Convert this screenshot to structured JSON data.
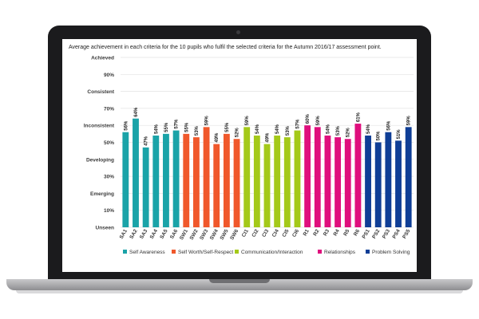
{
  "chart_data": {
    "type": "bar",
    "title": "Average achievement in each criteria for the 10 pupils who fulfil the selected criteria for the Autumn 2016/17 assessment point.",
    "ylim": [
      0,
      100
    ],
    "yticks": [
      {
        "value": 100,
        "label": "Achieved"
      },
      {
        "value": 90,
        "label": "90%"
      },
      {
        "value": 80,
        "label": "Consistent"
      },
      {
        "value": 70,
        "label": "70%"
      },
      {
        "value": 60,
        "label": "Inconsistent"
      },
      {
        "value": 50,
        "label": "50%"
      },
      {
        "value": 40,
        "label": "Developing"
      },
      {
        "value": 30,
        "label": "30%"
      },
      {
        "value": 20,
        "label": "Emerging"
      },
      {
        "value": 10,
        "label": "10%"
      },
      {
        "value": 0,
        "label": "Unseen"
      }
    ],
    "grid": true,
    "legend_position": "bottom",
    "series": [
      {
        "name": "Self Awareness",
        "color": "#1aa3a8",
        "categories": [
          "SA1",
          "SA2",
          "SA3",
          "SA4",
          "SA5",
          "SA6"
        ],
        "values": [
          56,
          64,
          47,
          54,
          55,
          57
        ]
      },
      {
        "name": "Self Worth/Self-Respect",
        "color": "#f0582b",
        "categories": [
          "SW1",
          "SW2",
          "SW3",
          "SW4",
          "SW5",
          "SW6"
        ],
        "values": [
          55,
          53,
          59,
          49,
          55,
          52
        ]
      },
      {
        "name": "Communication/Interaction",
        "color": "#a4c919",
        "categories": [
          "CI1",
          "CI2",
          "CI3",
          "CI4",
          "CI5",
          "CI6"
        ],
        "values": [
          59,
          54,
          49,
          54,
          53,
          57
        ]
      },
      {
        "name": "Relationships",
        "color": "#df0f7d",
        "categories": [
          "R1",
          "R2",
          "R3",
          "R4",
          "R5",
          "R6"
        ],
        "values": [
          60,
          59,
          54,
          53,
          52,
          61
        ]
      },
      {
        "name": "Problem Solving",
        "color": "#0f3e96",
        "categories": [
          "PS1",
          "PS2",
          "PS3",
          "PS4",
          "PS5"
        ],
        "values": [
          54,
          50,
          56,
          51,
          59
        ]
      }
    ]
  }
}
